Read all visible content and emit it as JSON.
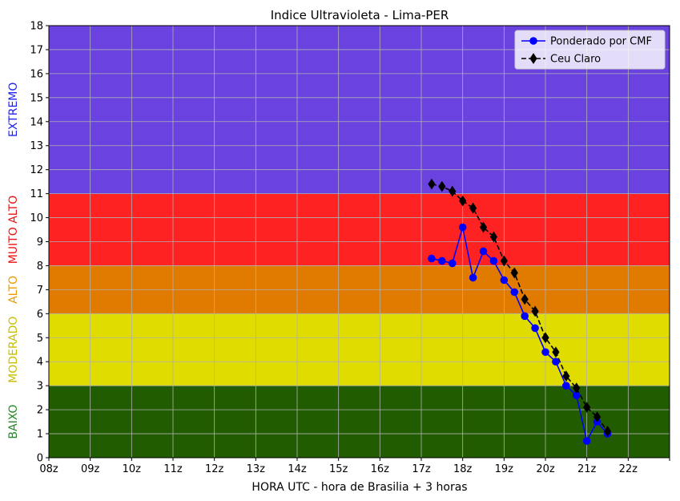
{
  "chart_data": {
    "type": "line",
    "title": "Indice Ultravioleta - Lima-PER",
    "xlabel": "HORA UTC - hora de Brasilia + 3 horas",
    "ylabel": "",
    "xlim": [
      8,
      23
    ],
    "ylim": [
      0,
      18
    ],
    "grid": true,
    "legend_position": "top-right",
    "x_ticks": [
      "08z",
      "09z",
      "10z",
      "11z",
      "12z",
      "13z",
      "14z",
      "15z",
      "16z",
      "17z",
      "18z",
      "19z",
      "20z",
      "21z",
      "22z",
      ""
    ],
    "y_ticks": [
      "0",
      "1",
      "2",
      "3",
      "4",
      "5",
      "6",
      "7",
      "8",
      "9",
      "10",
      "11",
      "12",
      "13",
      "14",
      "15",
      "16",
      "17",
      "18"
    ],
    "bands": [
      {
        "name": "BAIXO",
        "from": 0,
        "to": 3,
        "color": "#225c00",
        "label_color": "#228b22"
      },
      {
        "name": "MODERADO",
        "from": 3,
        "to": 6,
        "color": "#e0dc00",
        "label_color": "#c8be00"
      },
      {
        "name": "ALTO",
        "from": 6,
        "to": 8,
        "color": "#e07b00",
        "label_color": "#ee9a00"
      },
      {
        "name": "MUITO ALTO",
        "from": 8,
        "to": 11,
        "color": "#ff2222",
        "label_color": "#ee1111"
      },
      {
        "name": "EXTREMO",
        "from": 11,
        "to": 18,
        "color": "#6a42e0",
        "label_color": "#2222ee"
      }
    ],
    "series": [
      {
        "name": "Ponderado por CMF",
        "color": "#0000ff",
        "marker": "circle",
        "line": "solid",
        "x": [
          17.25,
          17.5,
          17.75,
          18.0,
          18.25,
          18.5,
          18.75,
          19.0,
          19.25,
          19.5,
          19.75,
          20.0,
          20.25,
          20.5,
          20.75,
          21.0,
          21.25,
          21.5
        ],
        "values": [
          8.3,
          8.2,
          8.1,
          9.6,
          7.5,
          8.6,
          8.2,
          7.4,
          6.9,
          5.9,
          5.4,
          4.4,
          4.0,
          3.0,
          2.6,
          0.7,
          1.5,
          1.0
        ]
      },
      {
        "name": "Ceu Claro",
        "color": "#000000",
        "marker": "diamond",
        "line": "dashed",
        "x": [
          17.25,
          17.5,
          17.75,
          18.0,
          18.25,
          18.5,
          18.75,
          19.0,
          19.25,
          19.5,
          19.75,
          20.0,
          20.25,
          20.5,
          20.75,
          21.0,
          21.25,
          21.5
        ],
        "values": [
          11.4,
          11.3,
          11.1,
          10.7,
          10.4,
          9.6,
          9.2,
          8.2,
          7.7,
          6.6,
          6.1,
          5.0,
          4.4,
          3.4,
          2.9,
          2.1,
          1.7,
          1.1
        ]
      }
    ]
  }
}
